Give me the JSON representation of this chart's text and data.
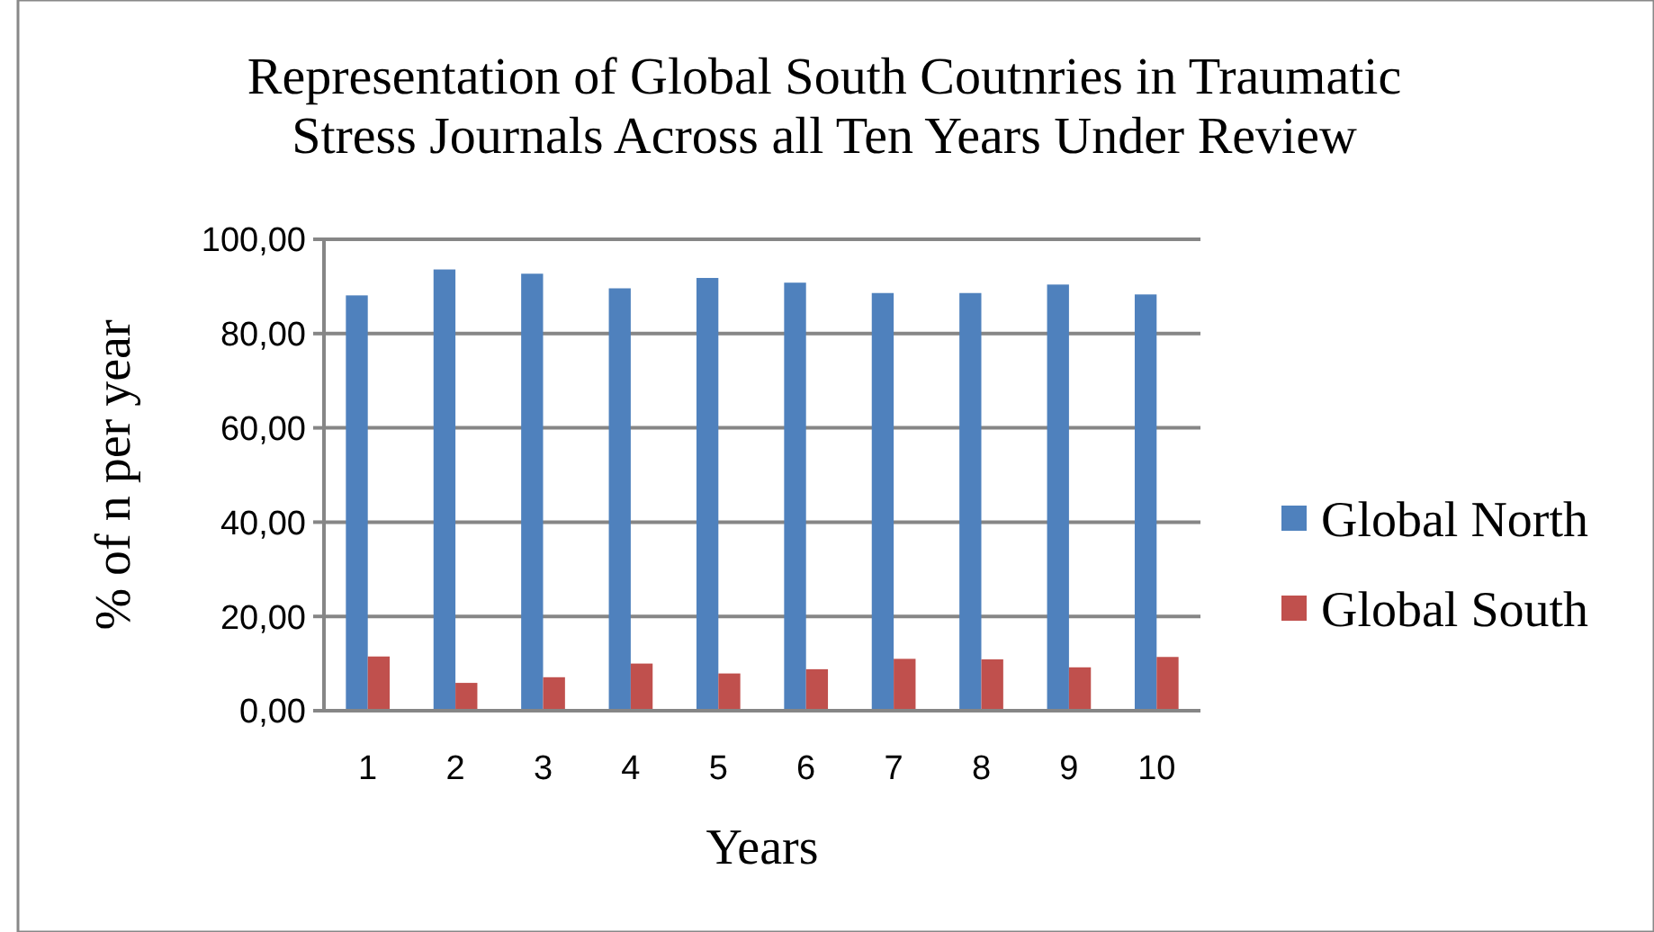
{
  "chart_data": {
    "type": "bar",
    "title": "Representation of Global South Coutnries in Traumatic Stress Journals Across all Ten Years Under Review",
    "xlabel": "Years",
    "ylabel": "% of n per year",
    "categories": [
      "1",
      "2",
      "3",
      "4",
      "5",
      "6",
      "7",
      "8",
      "9",
      "10"
    ],
    "series": [
      {
        "name": "Global North",
        "color": "#4f81bd",
        "values": [
          88.1,
          93.6,
          92.7,
          89.6,
          91.8,
          90.8,
          88.6,
          88.6,
          90.4,
          88.3
        ]
      },
      {
        "name": "Global South",
        "color": "#c0504d",
        "values": [
          11.5,
          5.9,
          7.1,
          10.0,
          7.9,
          8.8,
          11.0,
          10.9,
          9.2,
          11.4
        ]
      }
    ],
    "ylim": [
      0,
      100
    ],
    "yticks": [
      {
        "value": 0,
        "label": "0,00"
      },
      {
        "value": 20,
        "label": "20,00"
      },
      {
        "value": 40,
        "label": "40,00"
      },
      {
        "value": 60,
        "label": "60,00"
      },
      {
        "value": 80,
        "label": "80,00"
      },
      {
        "value": 100,
        "label": "100,00"
      }
    ],
    "grid": "y",
    "legend": "right"
  }
}
